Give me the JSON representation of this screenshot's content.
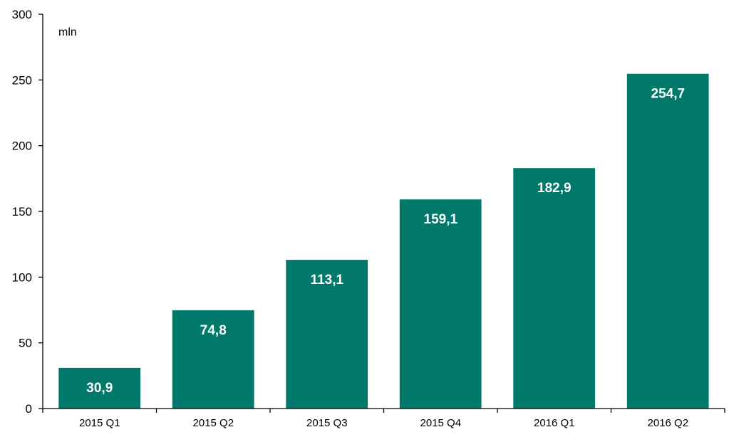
{
  "chart_data": {
    "type": "bar",
    "categories": [
      "2015 Q1",
      "2015 Q2",
      "2015 Q3",
      "2015 Q4",
      "2016 Q1",
      "2016 Q2"
    ],
    "values": [
      30.9,
      74.8,
      113.1,
      159.1,
      182.9,
      254.7
    ],
    "data_labels": [
      "30,9",
      "74,8",
      "113,1",
      "159,1",
      "182,9",
      "254,7"
    ],
    "ylim": [
      0,
      300
    ],
    "yticks": [
      0,
      50,
      100,
      150,
      200,
      250,
      300
    ],
    "unit_label": "mln",
    "title": "",
    "xlabel": "",
    "ylabel": "",
    "grid": false,
    "legend": "none",
    "bar_color": "#00796b"
  }
}
